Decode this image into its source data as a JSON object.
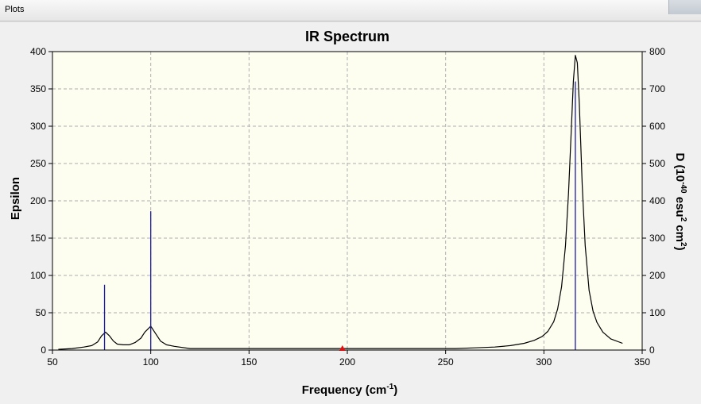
{
  "window": {
    "title": "Plots"
  },
  "colors": {
    "plot_bg": "#fdfdf0",
    "curve": "#000000",
    "sticks": "#1a1aa8",
    "marker": "#e01010",
    "grid": "#b0b0b0"
  },
  "chart_data": {
    "type": "line",
    "title": "IR Spectrum",
    "xlabel": "Frequency (cm",
    "xlabel_sup": "-1",
    "xlabel_close": ")",
    "ylabel_left": "Epsilon",
    "ylabel_right": {
      "p1": "D (10",
      "sup1": "-40",
      "p2": " esu",
      "sup2": "2",
      "p3": " cm",
      "sup3": "2",
      "p4": ")"
    },
    "xlim": [
      50,
      350
    ],
    "ylim_left": [
      0,
      400
    ],
    "ylim_right": [
      0,
      800
    ],
    "grid": true,
    "x_ticks": [
      50,
      100,
      150,
      200,
      250,
      300,
      350
    ],
    "y_ticks_left": [
      0,
      50,
      100,
      150,
      200,
      250,
      300,
      350,
      400
    ],
    "y_ticks_right": [
      0,
      100,
      200,
      300,
      400,
      500,
      600,
      700,
      800
    ],
    "series": [
      {
        "x": [
          53,
          60,
          66,
          70,
          73,
          75,
          77,
          79,
          81,
          83,
          86,
          89,
          92,
          95,
          97,
          100,
          102,
          105,
          108,
          112,
          120,
          140,
          170,
          200,
          230,
          255,
          265,
          275,
          283,
          290,
          295,
          299,
          302,
          305,
          307,
          309,
          311,
          312.5,
          314,
          315,
          316,
          317,
          318,
          319.5,
          321,
          323,
          325,
          327,
          330,
          334,
          340
        ],
        "values": [
          1,
          2,
          4,
          6,
          11,
          19,
          24,
          19,
          12,
          8,
          7,
          7,
          10,
          16,
          24,
          32,
          24,
          12,
          7,
          5,
          2,
          2,
          2,
          2,
          2,
          2,
          3,
          4,
          6,
          9,
          13,
          18,
          25,
          38,
          55,
          85,
          140,
          210,
          300,
          360,
          395,
          385,
          330,
          220,
          140,
          80,
          52,
          37,
          24,
          15,
          9
        ]
      }
    ],
    "sticks": [
      {
        "x": 76.5,
        "d": 175
      },
      {
        "x": 100,
        "d": 372
      },
      {
        "x": 316,
        "d": 720
      }
    ],
    "marker": {
      "x": 197.5,
      "y": 0
    }
  }
}
